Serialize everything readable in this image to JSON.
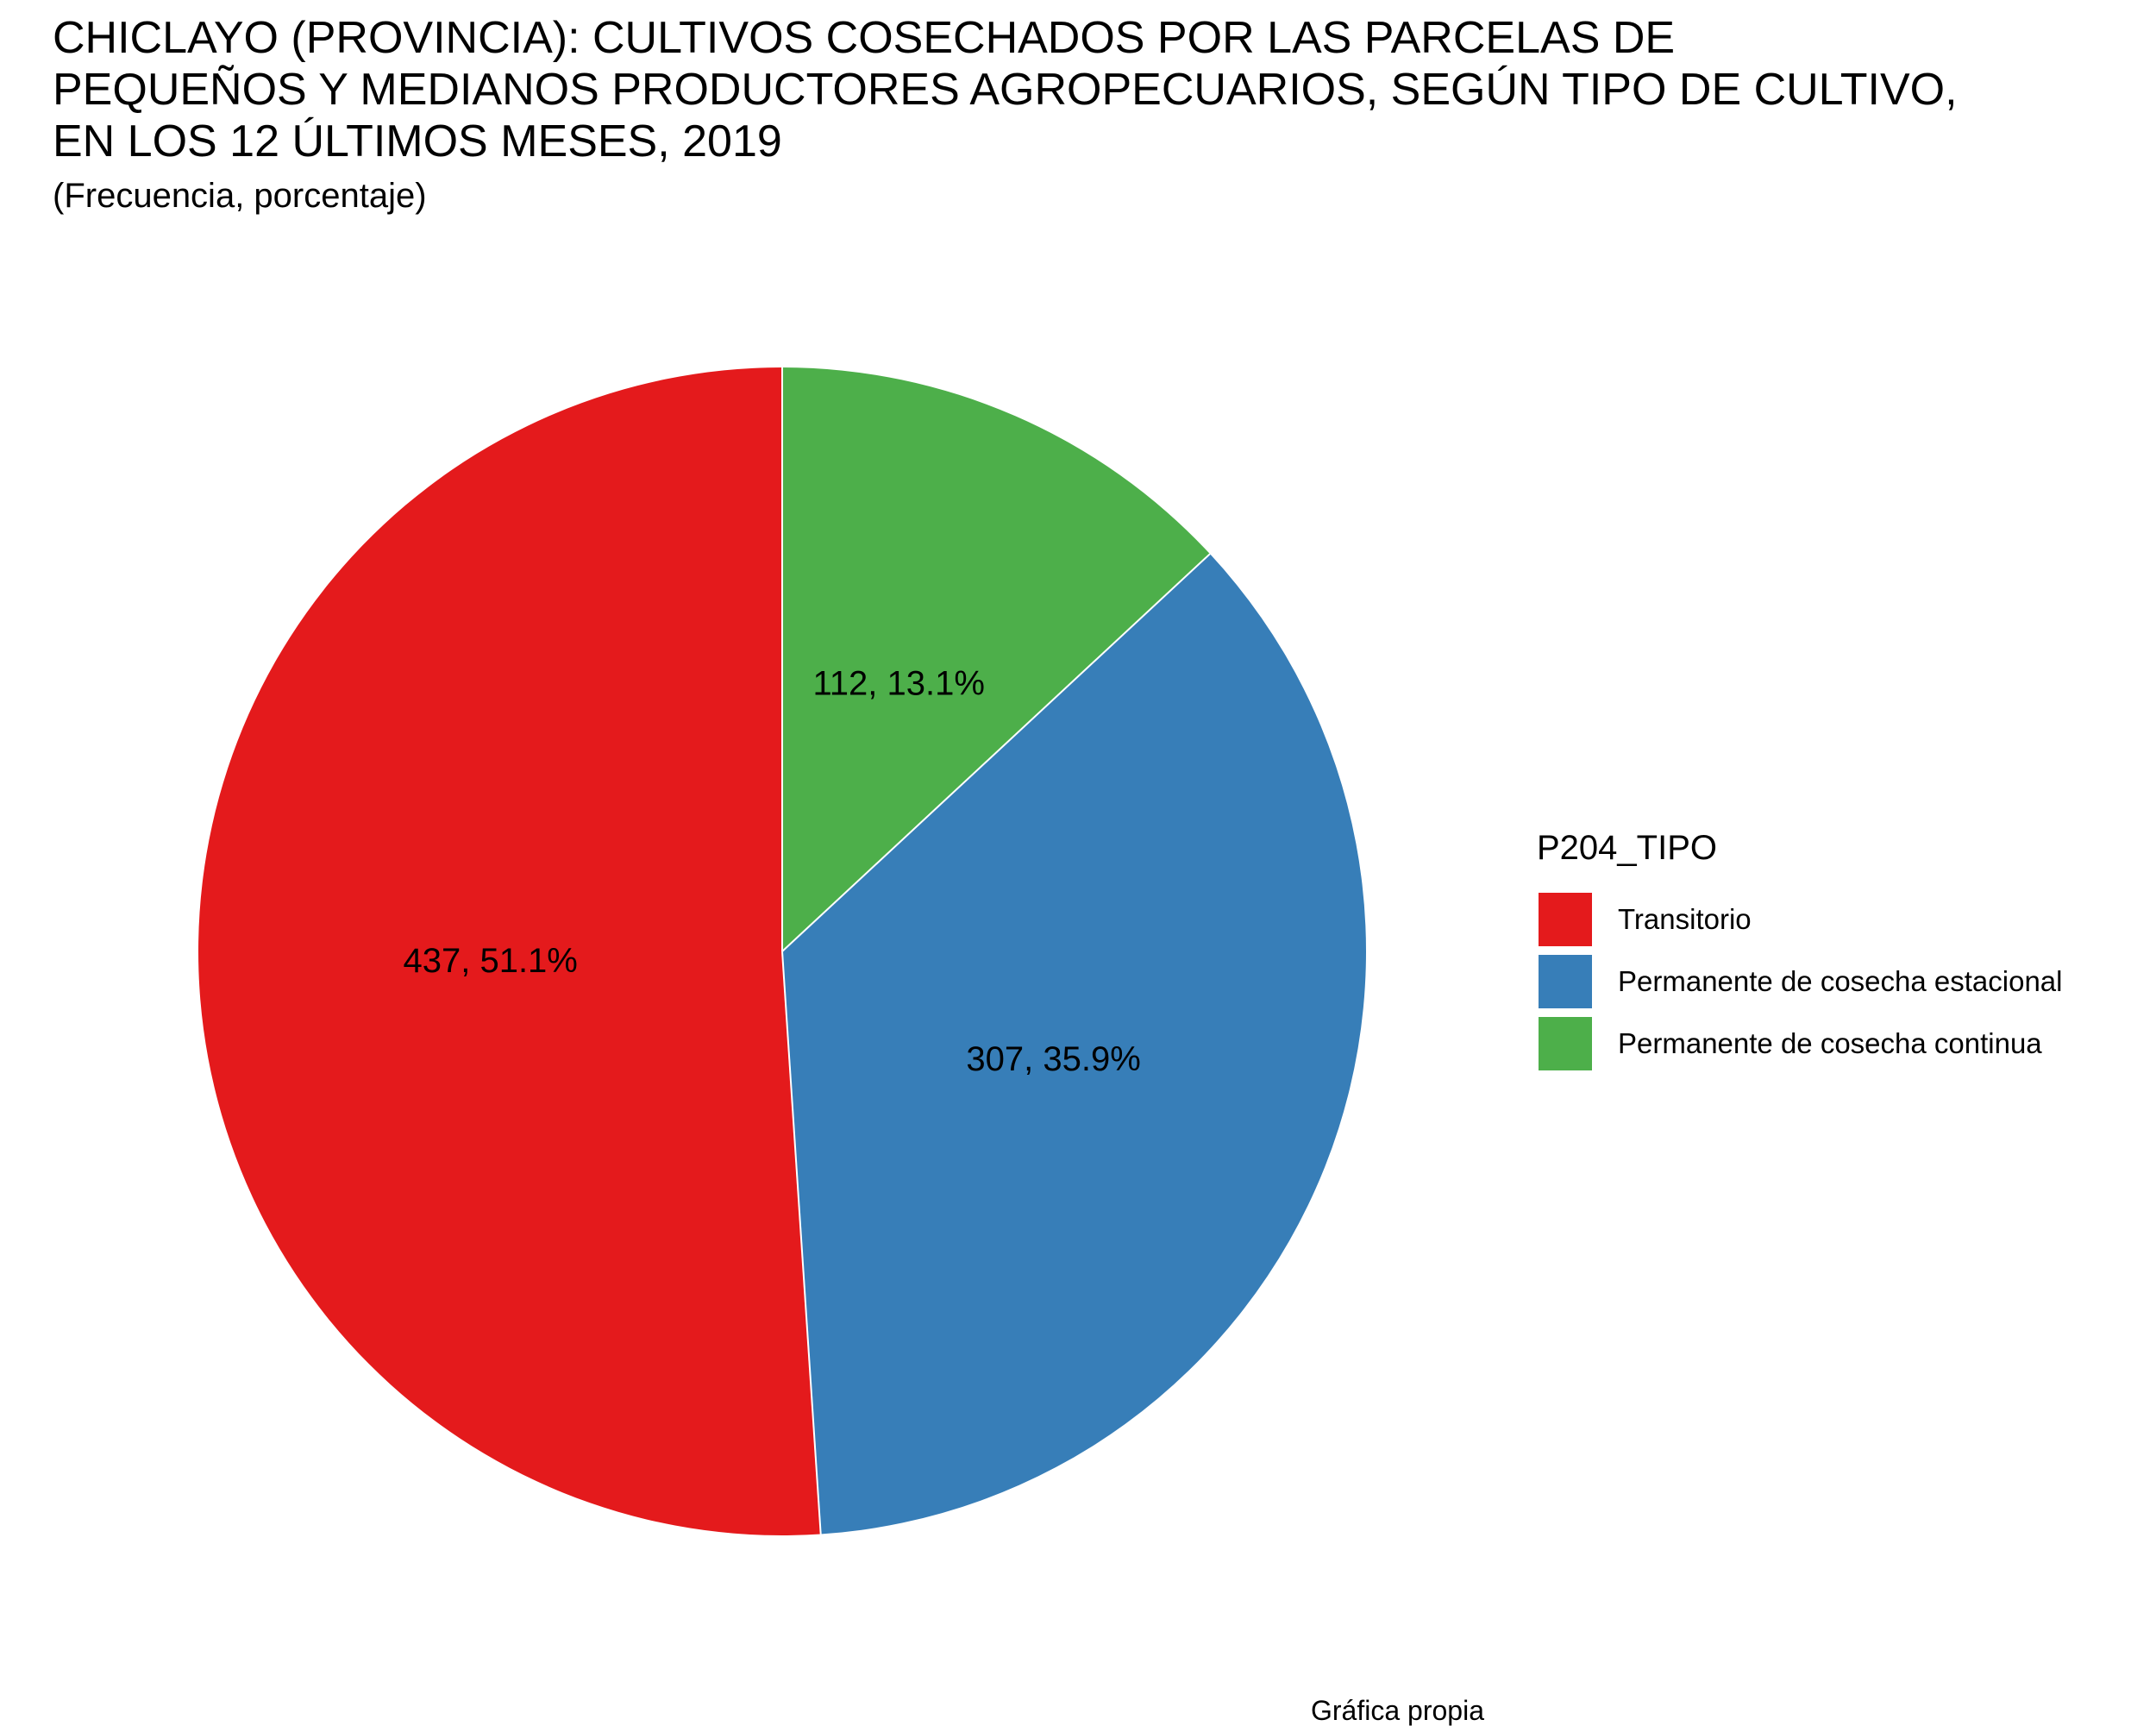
{
  "title": "CHICLAYO (PROVINCIA): CULTIVOS COSECHADOS POR LAS PARCELAS DE\nPEQUEÑOS Y MEDIANOS PRODUCTORES AGROPECUARIOS, SEGÚN TIPO DE CULTIVO,\nEN LOS 12 ÚLTIMOS MESES, 2019",
  "subtitle": "(Frecuencia, porcentaje)",
  "caption": "Gráfica propia",
  "chart_data": {
    "type": "pie",
    "title": "CHICLAYO (PROVINCIA): CULTIVOS COSECHADOS POR LAS PARCELAS DE PEQUEÑOS Y MEDIANOS PRODUCTORES AGROPECUARIOS, SEGÚN TIPO DE CULTIVO, EN LOS 12 ÚLTIMOS MESES, 2019",
    "subtitle": "(Frecuencia, porcentaje)",
    "legend_title": "P204_TIPO",
    "legend_position": "right",
    "slices": [
      {
        "category": "Transitorio",
        "value": 437,
        "percent": 51.1,
        "label": "437, 51.1%",
        "color": "#E41A1C"
      },
      {
        "category": "Permanente de cosecha estacional",
        "value": 307,
        "percent": 35.9,
        "label": "307, 35.9%",
        "color": "#377EB8"
      },
      {
        "category": "Permanente de cosecha continua",
        "value": 112,
        "percent": 13.1,
        "label": "112, 13.1%",
        "color": "#4DAF4A"
      }
    ]
  }
}
